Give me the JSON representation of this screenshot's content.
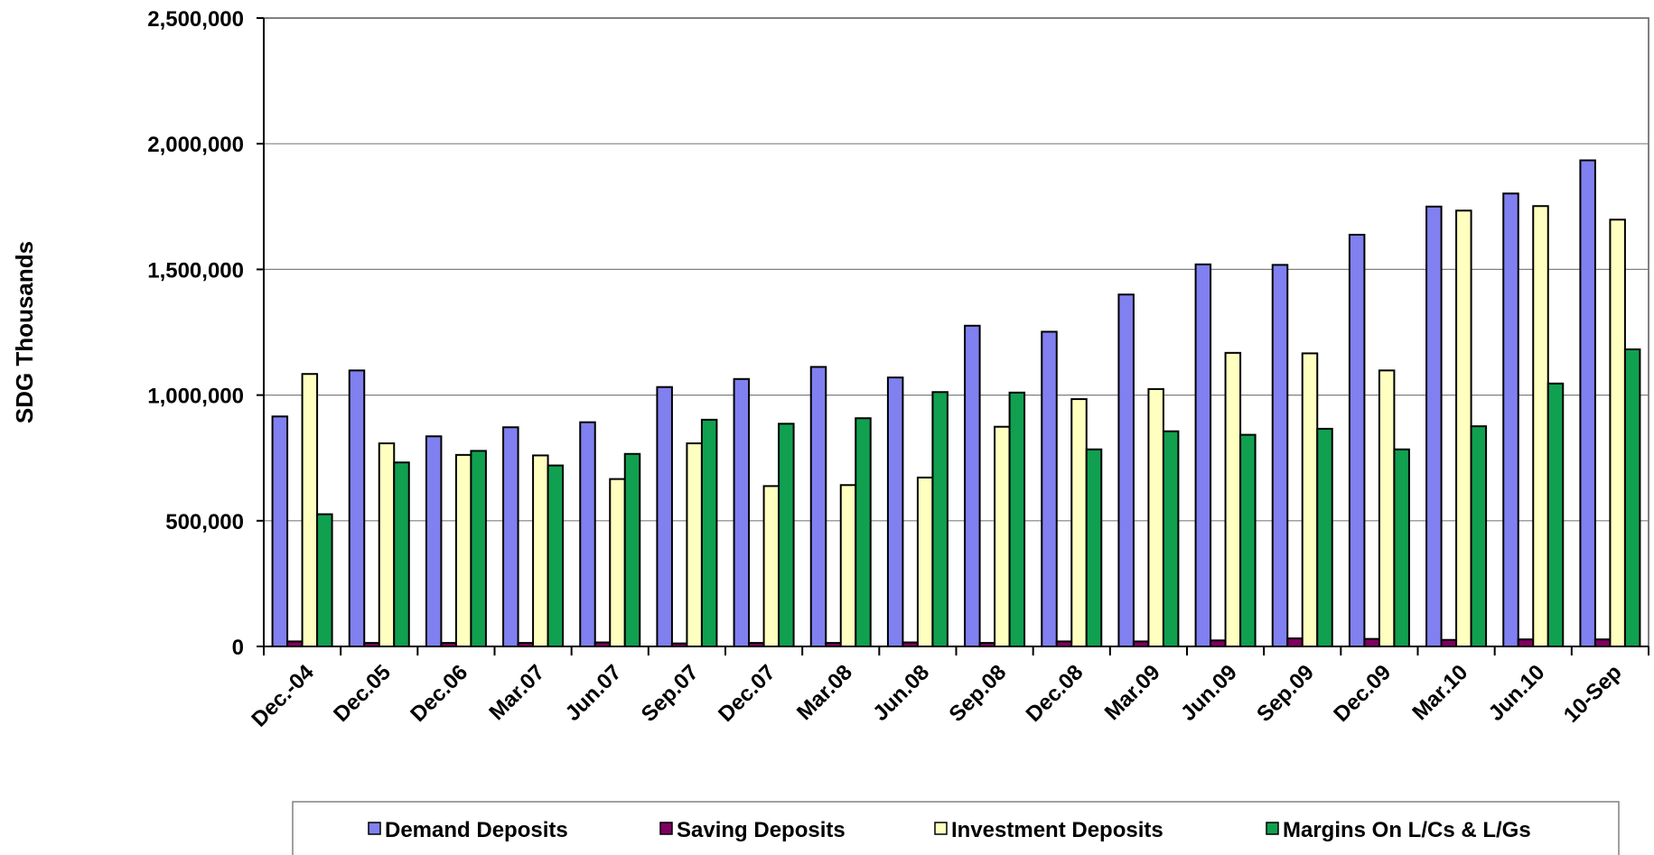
{
  "chart_data": {
    "type": "bar",
    "title": "",
    "xlabel": "",
    "ylabel": "SDG Thousands",
    "ylim": [
      0,
      2500000
    ],
    "yticks": [
      0,
      500000,
      1000000,
      1500000,
      2000000,
      2500000
    ],
    "ytick_labels": [
      "0",
      "500,000",
      "1,000,000",
      "1,500,000",
      "2,000,000",
      "2,500,000"
    ],
    "grid": true,
    "legend_position": "bottom",
    "categories": [
      "Dec.-04",
      "Dec.05",
      "Dec.06",
      "Mar.07",
      "Jun.07",
      "Sep.07",
      "Dec.07",
      "Mar.08",
      "Jun.08",
      "Sep.08",
      "Dec.08",
      "Mar.09",
      "Jun.09",
      "Sep.09",
      "Dec.09",
      "Mar.10",
      "Jun.10",
      "10-Sep"
    ],
    "series": [
      {
        "name": "Demand Deposits",
        "color": "#8080f0",
        "values": [
          915000,
          1098000,
          836000,
          872000,
          892000,
          1032000,
          1064000,
          1112000,
          1070000,
          1276000,
          1252000,
          1400000,
          1520000,
          1518000,
          1638000,
          1750000,
          1802000,
          1934000
        ]
      },
      {
        "name": "Saving Deposits",
        "color": "#800060",
        "values": [
          20000,
          14000,
          14000,
          14000,
          16000,
          12000,
          14000,
          14000,
          16000,
          14000,
          20000,
          20000,
          24000,
          32000,
          30000,
          26000,
          28000,
          28000
        ]
      },
      {
        "name": "Investment Deposits",
        "color": "#ffffc0",
        "values": [
          1084000,
          808000,
          762000,
          760000,
          666000,
          808000,
          638000,
          642000,
          672000,
          874000,
          984000,
          1024000,
          1168000,
          1166000,
          1098000,
          1734000,
          1752000,
          1698000
        ]
      },
      {
        "name": "Margins On L/Cs & L/Gs",
        "color": "#10a050",
        "values": [
          526000,
          732000,
          778000,
          720000,
          766000,
          902000,
          886000,
          908000,
          1012000,
          1010000,
          784000,
          856000,
          842000,
          866000,
          784000,
          876000,
          1046000,
          1182000
        ]
      }
    ]
  }
}
